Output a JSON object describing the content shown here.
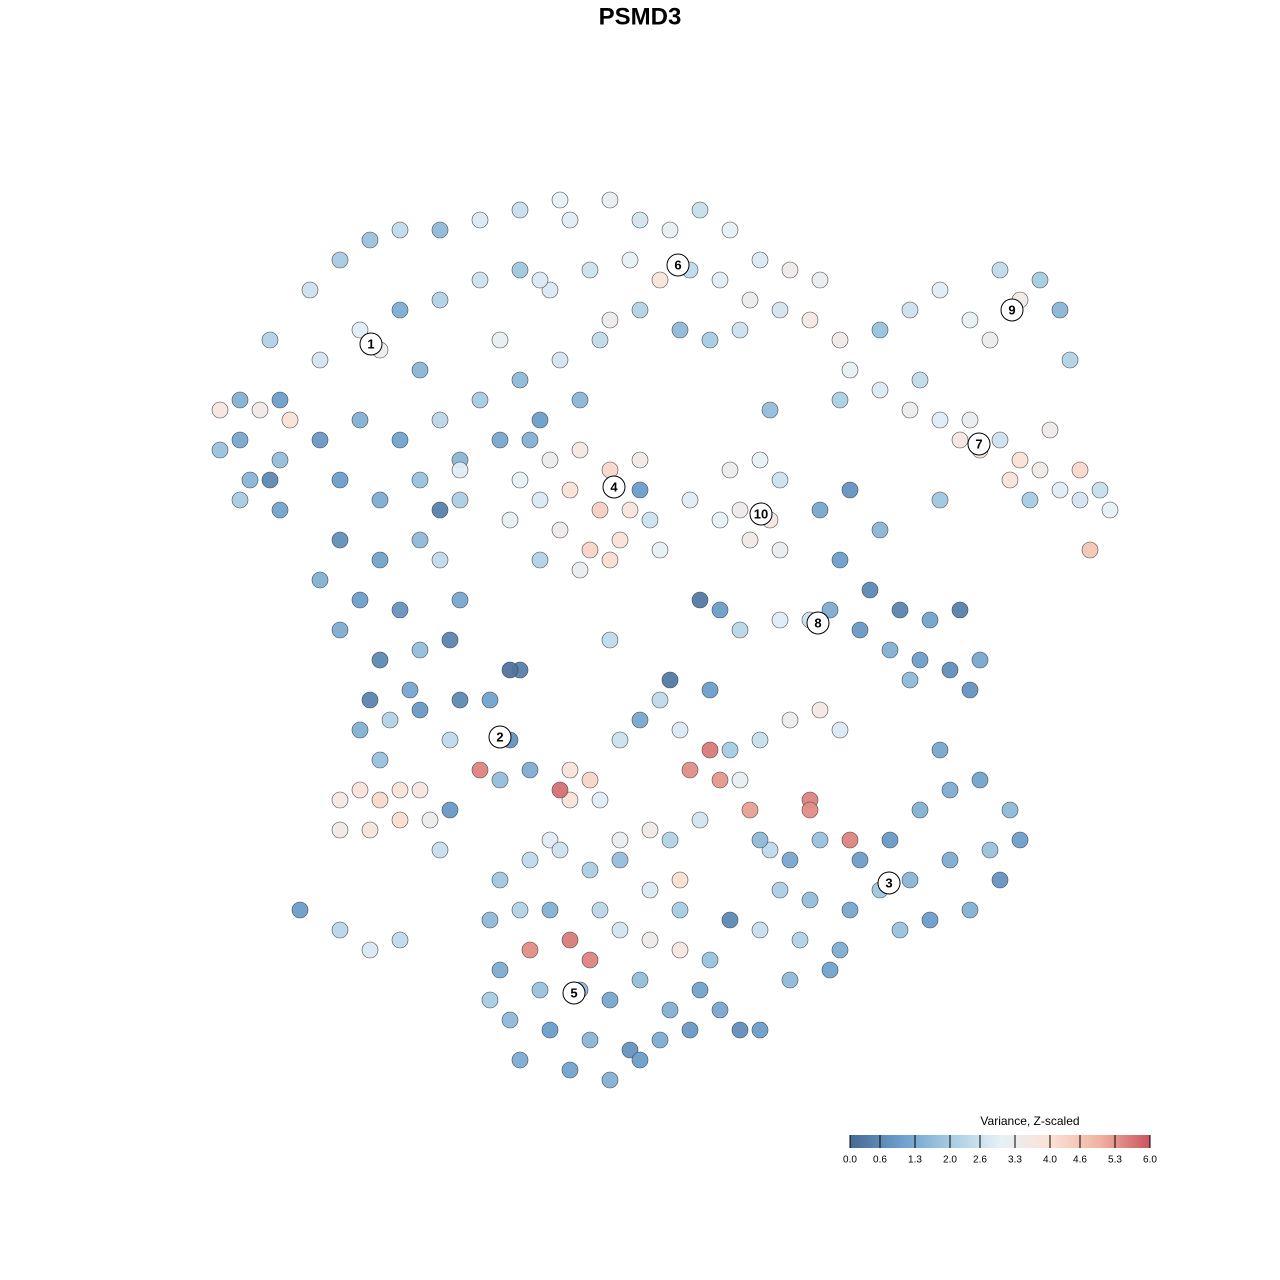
{
  "chart_data": {
    "type": "scatter",
    "title": "PSMD3",
    "colorbar_title": "Variance, Z-scaled",
    "clim": [
      0,
      6
    ],
    "colors": [
      "#476a94",
      "#6a9ecb",
      "#a5cbe2",
      "#e6f0f6",
      "#fbe2d6",
      "#f0b3a0",
      "#c9545e"
    ],
    "colorbar_ticks": [
      {
        "value": 0,
        "label": "0.0"
      },
      0.6,
      1.3,
      {
        "value": 2,
        "label": "2.0"
      },
      2.6,
      3.3,
      {
        "value": 4,
        "label": "4.0"
      },
      4.6,
      5.3,
      {
        "value": 6,
        "label": "6.0"
      }
    ],
    "xlim": [
      -44,
      50
    ],
    "ylim": [
      -46,
      46
    ],
    "x": [
      -40,
      -37,
      -33,
      -30,
      -27,
      -24,
      -20,
      -16,
      -12,
      -8,
      -36,
      -32,
      -28,
      -24,
      -20,
      -16,
      -12,
      -9,
      -26,
      -22,
      -40,
      -36,
      -32,
      -28,
      -24,
      -20,
      -16,
      -12,
      -8,
      -14,
      -42,
      -38,
      -35,
      -30,
      -26,
      -22,
      -18,
      -14,
      -18,
      -22,
      -30,
      -26,
      -32,
      -28,
      -24,
      -30,
      -26,
      -22,
      -27,
      -23,
      -39,
      -42,
      -36,
      -20,
      -18,
      -40,
      -18,
      -10,
      -6,
      -4,
      -7,
      -3,
      0,
      3,
      6,
      9,
      12,
      15,
      18,
      -5,
      -1,
      2,
      5,
      8,
      11,
      14,
      17,
      20,
      0,
      4,
      7,
      10,
      -3,
      -10,
      24,
      27,
      30,
      33,
      36,
      38,
      40,
      42,
      35,
      43,
      21,
      24,
      27,
      30,
      32,
      34,
      36,
      38,
      40,
      42,
      44,
      46,
      47,
      28,
      33,
      37,
      41,
      44,
      39,
      45,
      -12,
      -9,
      -6,
      -3,
      0,
      -10,
      -7,
      -4,
      -1,
      -13,
      -8,
      -5,
      -2,
      1,
      -10,
      -6,
      -3,
      0,
      -11,
      2,
      9,
      12,
      14,
      10,
      13,
      11,
      14,
      8,
      18,
      21,
      24,
      20,
      23,
      19,
      22,
      26,
      29,
      32,
      25,
      28,
      31,
      34,
      27,
      17,
      14,
      10,
      30,
      33,
      -28,
      -25,
      -22,
      -18,
      -15,
      -13,
      -11,
      -14,
      -19,
      -26,
      -30,
      -28,
      -26,
      -24,
      -22,
      -30,
      -27,
      -24,
      -21,
      -16,
      -20,
      -19,
      -34,
      -30,
      -27,
      -24,
      -7,
      -5,
      -7,
      -4,
      -2,
      0,
      2,
      4,
      7,
      5,
      9,
      12,
      15,
      18,
      20,
      -8,
      8,
      10,
      1,
      3,
      6,
      11,
      13,
      17,
      -2,
      -9,
      4,
      3,
      7,
      -12,
      12,
      15,
      18,
      17,
      22,
      25,
      28,
      31,
      34,
      37,
      38,
      35,
      31,
      27,
      24,
      21,
      17,
      14,
      21,
      29,
      33,
      26,
      20,
      16,
      19,
      15,
      36,
      25,
      12,
      30,
      -14,
      -11,
      -8,
      -5,
      -2,
      1,
      4,
      -15,
      -12,
      -9,
      -7,
      -11,
      -5,
      -2,
      1,
      4,
      -14,
      -10,
      -6,
      -3,
      0,
      3,
      6,
      -13,
      -9,
      -5,
      -1,
      2,
      5,
      8,
      -7,
      -3,
      0,
      10,
      -15,
      -12,
      7,
      -4,
      9,
      12,
      -19,
      -13,
      6,
      -3,
      -20,
      -37,
      13,
      5,
      20,
      8
    ],
    "y": [
      24,
      30,
      35,
      38,
      40,
      41,
      41,
      42,
      43,
      44,
      24,
      28,
      31,
      33,
      34,
      36,
      37,
      35,
      29,
      27,
      20,
      18,
      20,
      22,
      20,
      22,
      24,
      26,
      28,
      30,
      23,
      23,
      22,
      16,
      14,
      16,
      18,
      20,
      14,
      10,
      10,
      8,
      6,
      4,
      3,
      1,
      -2,
      -1,
      -6,
      -5,
      16,
      19,
      13,
      8,
      4,
      14,
      17,
      22,
      24,
      30,
      42,
      44,
      42,
      41,
      43,
      41,
      38,
      37,
      36,
      37,
      38,
      36,
      37,
      36,
      34,
      33,
      32,
      30,
      33,
      31,
      30,
      31,
      32,
      36,
      31,
      33,
      35,
      32,
      37,
      34,
      36,
      33,
      30,
      28,
      27,
      25,
      23,
      22,
      20,
      19,
      20,
      18,
      17,
      15,
      14,
      15,
      13,
      26,
      22,
      16,
      21,
      17,
      14,
      9,
      16,
      18,
      19,
      17,
      18,
      14,
      15,
      13,
      13,
      12,
      11,
      9,
      10,
      12,
      8,
      7,
      8,
      15,
      20,
      9,
      17,
      18,
      16,
      13,
      12,
      10,
      9,
      12,
      13,
      15,
      11,
      8,
      5,
      3,
      1,
      3,
      2,
      3,
      -1,
      -2,
      -3,
      -2,
      -4,
      2,
      2,
      1,
      14,
      -5,
      -9,
      -8,
      -7,
      -6,
      -6,
      -10,
      -13,
      -14,
      -10,
      -12,
      -16,
      -15,
      -16,
      -15,
      -15,
      -19,
      -19,
      -18,
      -18,
      -13,
      -21,
      -17,
      -27,
      -29,
      -31,
      -30,
      -13,
      -14,
      -16,
      -16,
      -10,
      -8,
      -6,
      -9,
      -11,
      -13,
      -11,
      -10,
      -8,
      -7,
      -9,
      -15,
      -14,
      -14,
      -19,
      -20,
      -18,
      -17,
      -21,
      -16,
      -20,
      -20,
      -24,
      -4,
      -5,
      -3,
      -20,
      -22,
      -20,
      -17,
      -22,
      -20,
      -17,
      -15,
      -14,
      -17,
      -20,
      -21,
      -22,
      -24,
      -25,
      -27,
      -26,
      -25,
      -20,
      -28,
      -27,
      -29,
      -31,
      -30,
      -33,
      -34,
      -24,
      -24,
      -29,
      -11,
      -24,
      -22,
      -21,
      -23,
      -22,
      -25,
      -27,
      -28,
      -27,
      -27,
      -30,
      -31,
      -32,
      -29,
      -30,
      -31,
      -33,
      -35,
      -35,
      -36,
      -34,
      -37,
      -35,
      -38,
      -39,
      -40,
      -41,
      -40,
      -39,
      -37,
      -43,
      -44,
      -42,
      -39,
      -36,
      -42,
      -32,
      -27,
      -28,
      -39,
      0,
      -3,
      4,
      0,
      13,
      16,
      23,
      14,
      24,
      3
    ],
    "values": [
      1.4,
      2.2,
      2.6,
      2.0,
      1.8,
      2.4,
      1.6,
      2.8,
      2.5,
      3.0,
      1.0,
      2.7,
      2.9,
      1.3,
      2.2,
      2.6,
      1.9,
      2.8,
      3.3,
      1.5,
      1.2,
      1.7,
      0.9,
      1.4,
      1.1,
      2.3,
      2.0,
      1.6,
      2.7,
      3.1,
      3.7,
      3.5,
      3.9,
      1.0,
      1.3,
      1.8,
      1.5,
      1.2,
      2.1,
      1.6,
      0.7,
      1.1,
      1.4,
      1.0,
      0.8,
      1.3,
      0.6,
      1.7,
      0.5,
      1.2,
      1.5,
      1.8,
      1.1,
      2.4,
      1.2,
      2.0,
      2.9,
      1.0,
      1.5,
      2.4,
      2.9,
      3.2,
      2.7,
      3.1,
      2.5,
      3.0,
      2.8,
      3.4,
      3.2,
      2.6,
      3.0,
      3.8,
      2.4,
      2.9,
      3.3,
      2.7,
      3.6,
      3.5,
      2.2,
      1.6,
      2.0,
      2.6,
      3.4,
      2.8,
      1.8,
      2.6,
      2.9,
      3.0,
      2.4,
      3.5,
      2.0,
      1.5,
      3.3,
      2.2,
      3.1,
      2.8,
      3.3,
      2.9,
      3.7,
      3.8,
      2.6,
      4.0,
      3.5,
      2.9,
      2.7,
      2.5,
      3.0,
      2.4,
      3.2,
      3.9,
      3.4,
      4.2,
      2.0,
      4.6,
      3.0,
      3.3,
      3.6,
      4.2,
      3.5,
      2.8,
      4.0,
      4.4,
      3.8,
      3.1,
      3.4,
      4.3,
      3.9,
      2.6,
      2.2,
      3.2,
      4.1,
      1.0,
      1.4,
      3.0,
      3.3,
      3.0,
      2.6,
      3.4,
      3.7,
      3.5,
      3.2,
      3.0,
      1.2,
      0.8,
      1.5,
      1.0,
      0.6,
      1.3,
      0.9,
      0.5,
      1.1,
      0.4,
      1.4,
      1.0,
      0.7,
      1.2,
      1.6,
      2.6,
      2.9,
      2.3,
      1.9,
      0.8,
      1.4,
      2.2,
      0.9,
      0.6,
      1.1,
      0.8,
      1.3,
      1.7,
      2.4,
      1.8,
      3.6,
      3.9,
      4.2,
      4.0,
      3.7,
      3.5,
      3.8,
      4.1,
      3.3,
      5.5,
      2.5,
      0.9,
      1.0,
      2.3,
      2.8,
      2.4,
      3.8,
      4.3,
      3.9,
      2.9,
      2.6,
      1.2,
      2.4,
      2.8,
      5.6,
      5.4,
      2.0,
      2.5,
      3.3,
      3.6,
      2.8,
      5.7,
      5.3,
      3.1,
      3.5,
      2.2,
      2.7,
      5.2,
      2.4,
      5.5,
      3.2,
      2.9,
      4.1,
      0.3,
      1.0,
      0.4,
      1.6,
      1.2,
      1.8,
      5.4,
      1.0,
      0.9,
      1.4,
      1.3,
      1.1,
      1.6,
      1.0,
      1.8,
      1.3,
      1.5,
      1.9,
      1.2,
      1.7,
      2.1,
      5.5,
      1.0,
      1.4,
      1.8,
      1.3,
      2.2,
      1.1,
      1.6,
      0.8,
      1.2,
      2.5,
      1.2,
      1.9,
      2.4,
      2.6,
      2.1,
      1.7,
      2.8,
      2.0,
      1.6,
      2.2,
      1.4,
      5.6,
      5.4,
      5.5,
      2.7,
      3.4,
      3.7,
      1.3,
      1.8,
      1.5,
      1.2,
      1.7,
      1.4,
      1.1,
      1.6,
      1.0,
      1.5,
      0.8,
      1.3,
      0.9,
      1.2,
      1.1,
      1.4,
      1.0,
      0.7,
      2.0,
      1.3,
      1.8,
      2.3,
      0.6,
      1.0,
      0.5,
      0.2,
      0.3,
      2.4,
      0.4,
      0.6,
      1.7,
      2.9,
      2.1,
      1.0
    ],
    "annotations": [
      {
        "text": "1",
        "x": -26.9,
        "y": 29.6
      },
      {
        "text": "2",
        "x": -14,
        "y": -9.7
      },
      {
        "text": "3",
        "x": 24.9,
        "y": -24.3
      },
      {
        "text": "4",
        "x": -2.6,
        "y": 15.3
      },
      {
        "text": "5",
        "x": -6.6,
        "y": -35.3
      },
      {
        "text": "6",
        "x": 3.8,
        "y": 37.5
      },
      {
        "text": "7",
        "x": 33.9,
        "y": 19.6
      },
      {
        "text": "8",
        "x": 17.8,
        "y": 1.7
      },
      {
        "text": "9",
        "x": 37.2,
        "y": 33
      },
      {
        "text": "10",
        "x": 12.1,
        "y": 12.6
      }
    ]
  }
}
